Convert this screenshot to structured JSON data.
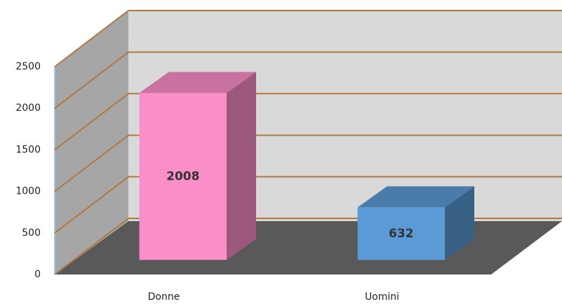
{
  "chart_data": {
    "type": "bar3d",
    "categories": [
      "Donne",
      "Uomini"
    ],
    "values": [
      2008,
      632
    ],
    "colors": [
      "#fb8fca",
      "#5b9bd5"
    ],
    "ylim": [
      0,
      2500
    ],
    "yticks": [
      0,
      500,
      1000,
      1500,
      2000,
      2500
    ],
    "grid": true
  }
}
